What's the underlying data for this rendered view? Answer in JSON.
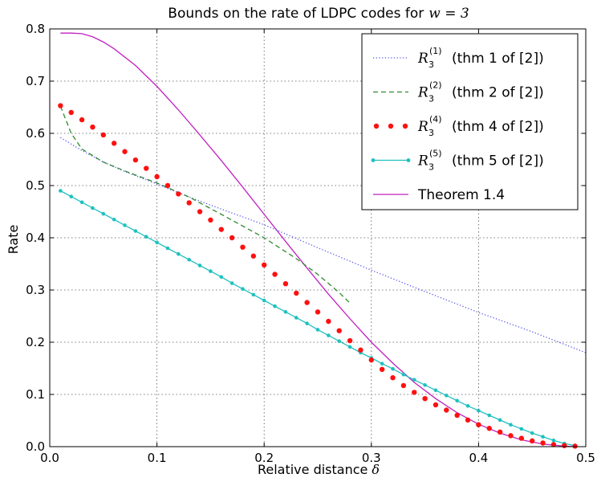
{
  "chart_data": {
    "type": "line",
    "title": "Bounds on the rate of LDPC codes for",
    "title_math": "w = 3",
    "xlabel": "Relative distance",
    "xlabel_symbol": "δ",
    "ylabel": "Rate",
    "xlim": [
      0.0,
      0.5
    ],
    "ylim": [
      0.0,
      0.8
    ],
    "xticks": [
      "0.0",
      "0.1",
      "0.2",
      "0.3",
      "0.4",
      "0.5"
    ],
    "yticks": [
      "0.0",
      "0.1",
      "0.2",
      "0.3",
      "0.4",
      "0.5",
      "0.6",
      "0.7",
      "0.8"
    ],
    "grid": true,
    "legend_position": "top-right",
    "series": [
      {
        "name": "(thm 1 of [2])",
        "symbol": "R",
        "sub": "3",
        "sup": "(1)",
        "color": "#5050f0",
        "style": "dotted",
        "x": [
          0.01,
          0.03,
          0.05,
          0.07,
          0.1,
          0.13,
          0.16,
          0.2,
          0.25,
          0.3,
          0.35,
          0.4,
          0.45,
          0.5
        ],
        "y": [
          0.592,
          0.567,
          0.545,
          0.527,
          0.503,
          0.478,
          0.455,
          0.425,
          0.381,
          0.338,
          0.297,
          0.257,
          0.22,
          0.18
        ]
      },
      {
        "name": "(thm 2 of [2])",
        "symbol": "R",
        "sub": "3",
        "sup": "(2)",
        "color": "#2e8b2e",
        "style": "dashed",
        "x": [
          0.01,
          0.02,
          0.03,
          0.05,
          0.07,
          0.1,
          0.13,
          0.16,
          0.2,
          0.23,
          0.25,
          0.27,
          0.28
        ],
        "y": [
          0.652,
          0.6,
          0.57,
          0.545,
          0.528,
          0.505,
          0.478,
          0.445,
          0.4,
          0.36,
          0.33,
          0.295,
          0.275
        ]
      },
      {
        "name": "(thm 4 of [2])",
        "symbol": "R",
        "sub": "3",
        "sup": "(4)",
        "color": "#ff1010",
        "style": "dots",
        "x": [
          0.01,
          0.02,
          0.03,
          0.04,
          0.05,
          0.06,
          0.07,
          0.08,
          0.09,
          0.1,
          0.11,
          0.12,
          0.13,
          0.14,
          0.15,
          0.16,
          0.17,
          0.18,
          0.19,
          0.2,
          0.21,
          0.22,
          0.23,
          0.24,
          0.25,
          0.26,
          0.27,
          0.28,
          0.29,
          0.3,
          0.31,
          0.32,
          0.33,
          0.34,
          0.35,
          0.36,
          0.37,
          0.38,
          0.39,
          0.4,
          0.41,
          0.42,
          0.43,
          0.44,
          0.45,
          0.46,
          0.47,
          0.48,
          0.49
        ],
        "y": [
          0.653,
          0.64,
          0.626,
          0.612,
          0.597,
          0.581,
          0.565,
          0.549,
          0.533,
          0.517,
          0.5,
          0.484,
          0.467,
          0.45,
          0.434,
          0.416,
          0.4,
          0.382,
          0.365,
          0.348,
          0.33,
          0.312,
          0.294,
          0.276,
          0.258,
          0.24,
          0.222,
          0.203,
          0.185,
          0.166,
          0.148,
          0.132,
          0.117,
          0.104,
          0.092,
          0.08,
          0.07,
          0.06,
          0.051,
          0.042,
          0.035,
          0.028,
          0.021,
          0.016,
          0.011,
          0.007,
          0.004,
          0.002,
          0.001
        ]
      },
      {
        "name": "(thm 5 of [2])",
        "symbol": "R",
        "sub": "3",
        "sup": "(5)",
        "color": "#20c0c0",
        "style": "line-markers",
        "x": [
          0.01,
          0.02,
          0.03,
          0.04,
          0.05,
          0.06,
          0.07,
          0.08,
          0.09,
          0.1,
          0.11,
          0.12,
          0.13,
          0.14,
          0.15,
          0.16,
          0.17,
          0.18,
          0.19,
          0.2,
          0.21,
          0.22,
          0.23,
          0.24,
          0.25,
          0.26,
          0.27,
          0.28,
          0.29,
          0.3,
          0.31,
          0.32,
          0.33,
          0.34,
          0.35,
          0.36,
          0.37,
          0.38,
          0.39,
          0.4,
          0.41,
          0.42,
          0.43,
          0.44,
          0.45,
          0.46,
          0.47,
          0.48,
          0.49
        ],
        "y": [
          0.49,
          0.479,
          0.468,
          0.457,
          0.446,
          0.435,
          0.424,
          0.413,
          0.402,
          0.391,
          0.38,
          0.369,
          0.358,
          0.347,
          0.336,
          0.325,
          0.313,
          0.302,
          0.291,
          0.28,
          0.269,
          0.258,
          0.247,
          0.236,
          0.224,
          0.213,
          0.202,
          0.191,
          0.18,
          0.17,
          0.159,
          0.149,
          0.138,
          0.128,
          0.118,
          0.108,
          0.098,
          0.088,
          0.078,
          0.069,
          0.06,
          0.051,
          0.042,
          0.034,
          0.026,
          0.019,
          0.012,
          0.006,
          0.002
        ]
      },
      {
        "name": "Theorem 1.4",
        "color": "#c020c0",
        "style": "solid",
        "x": [
          0.01,
          0.02,
          0.03,
          0.04,
          0.05,
          0.06,
          0.08,
          0.1,
          0.12,
          0.14,
          0.16,
          0.18,
          0.2,
          0.22,
          0.24,
          0.26,
          0.28,
          0.3,
          0.32,
          0.34,
          0.36,
          0.38,
          0.4,
          0.42,
          0.44,
          0.46,
          0.48,
          0.49
        ],
        "y": [
          0.792,
          0.792,
          0.791,
          0.785,
          0.775,
          0.762,
          0.73,
          0.69,
          0.645,
          0.597,
          0.548,
          0.497,
          0.445,
          0.393,
          0.342,
          0.292,
          0.245,
          0.2,
          0.16,
          0.123,
          0.092,
          0.065,
          0.043,
          0.026,
          0.013,
          0.005,
          0.001,
          0.0
        ]
      }
    ]
  }
}
